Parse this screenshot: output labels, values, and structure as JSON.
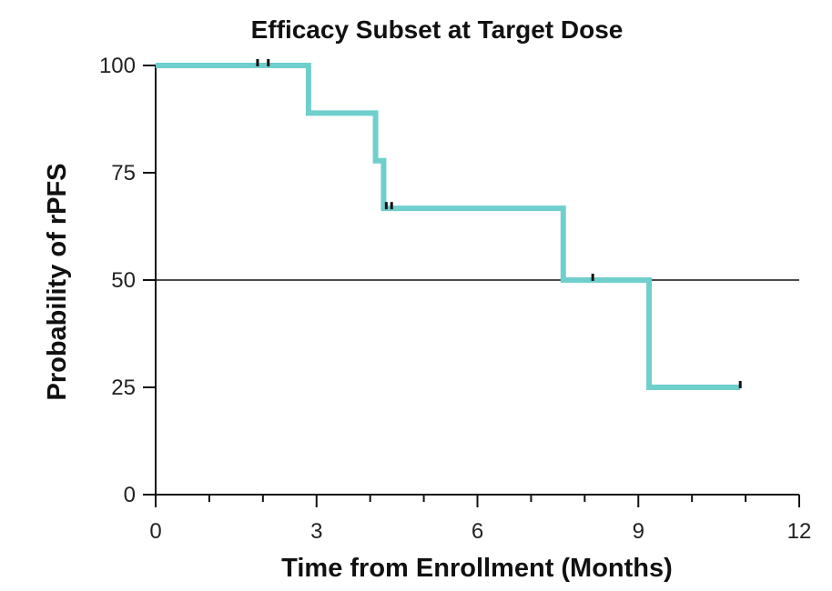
{
  "chart_data": {
    "type": "line",
    "title": "Efficacy Subset at Target Dose",
    "xlabel": "Time from Enrollment (Months)",
    "ylabel": "Probability of rPFS",
    "xlim": [
      0,
      12
    ],
    "ylim": [
      0,
      100
    ],
    "x_ticks": [
      0,
      3,
      6,
      9,
      12
    ],
    "x_minor_ticks": [
      1,
      2,
      4,
      5,
      7,
      8,
      10,
      11
    ],
    "x_tick_labels": [
      "0",
      "3",
      "6",
      "9",
      "12"
    ],
    "y_ticks": [
      0,
      25,
      50,
      75,
      100
    ],
    "y_tick_labels": [
      "0",
      "25",
      "50",
      "75",
      "100"
    ],
    "reference_line_y": 50,
    "grid": false,
    "legend": "none",
    "line_color": "#6FCFCD",
    "censor_color": "#111111",
    "series": [
      {
        "step": "post",
        "x": [
          0,
          2.85,
          4.1,
          4.25,
          7.6,
          9.2,
          10.9
        ],
        "y": [
          100,
          88.9,
          77.8,
          66.7,
          50,
          25,
          25
        ],
        "censored": [
          {
            "x": 1.9,
            "y": 100
          },
          {
            "x": 2.1,
            "y": 100
          },
          {
            "x": 4.3,
            "y": 66.7
          },
          {
            "x": 4.4,
            "y": 66.7
          },
          {
            "x": 8.15,
            "y": 50
          },
          {
            "x": 10.9,
            "y": 25
          }
        ]
      }
    ]
  }
}
